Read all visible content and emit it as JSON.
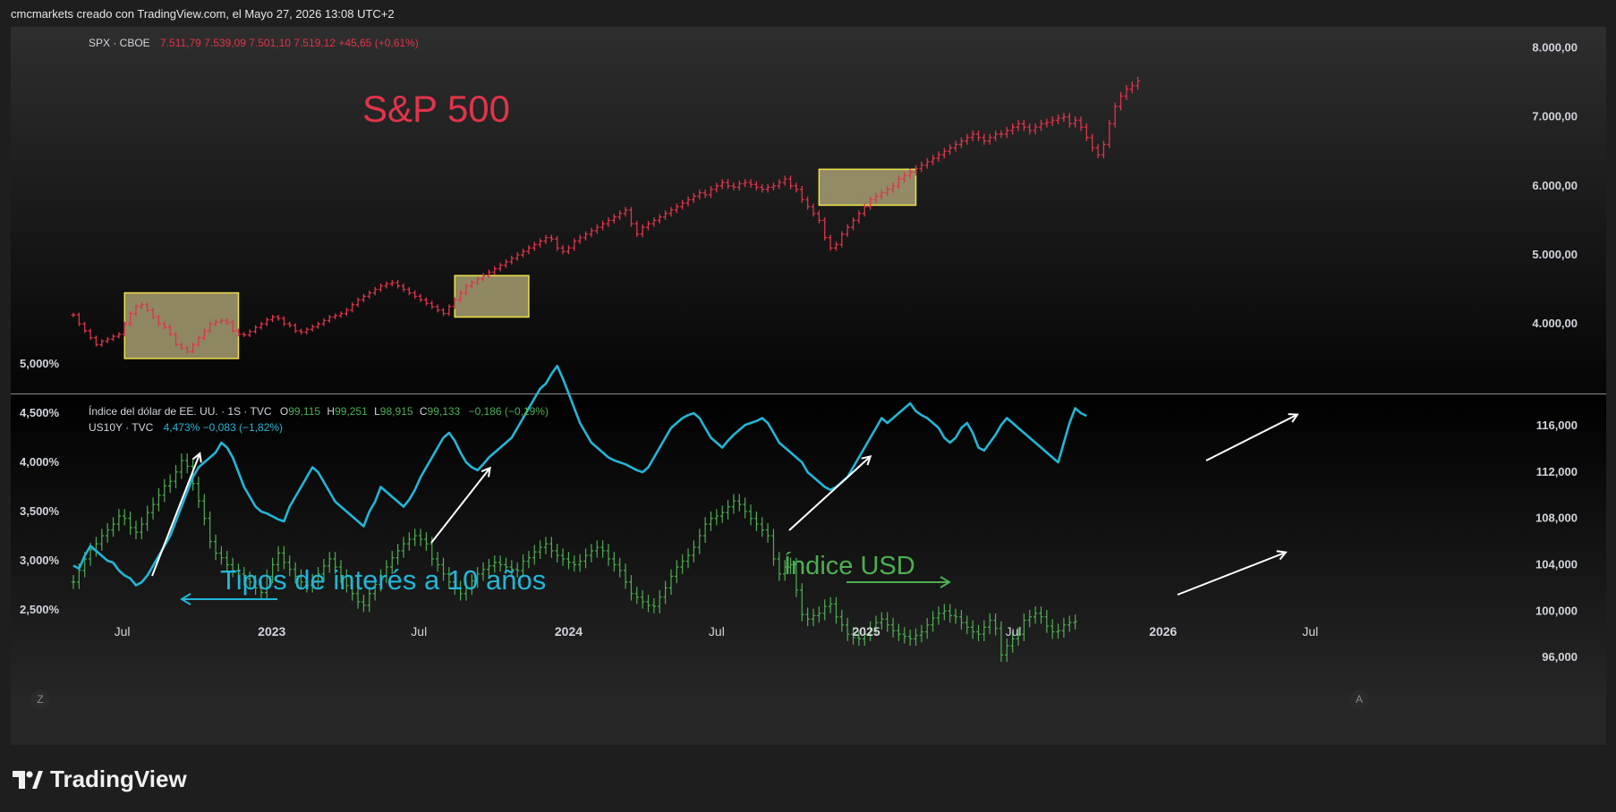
{
  "header": {
    "credit": "cmcmarkets creado con TradingView.com, el Mayo 27, 2026 13:08 UTC+2"
  },
  "branding": {
    "logo_text": "TradingView",
    "logo_icon": "tradingview-logo-icon"
  },
  "colors": {
    "spx": "#e0344a",
    "dxy": "#4caf50",
    "us10y": "#22b6d6",
    "highlight_fill": "#b3ab7a",
    "highlight_border": "#f0e14a",
    "panel_top_bg": "#2b2b2b",
    "panel_bottom_bg": "#000000"
  },
  "legend": {
    "spx_symbol": "SPX · CBOE",
    "spx_values": "7.511,79  7.539,09  7.501,10  7.519,12  +45,65 (+0,61%)",
    "dxy_symbol": "Índice del dólar de EE. UU. · 1S · TVC",
    "dxy_o_label": "O",
    "dxy_o": "99,115",
    "dxy_h_label": "H",
    "dxy_h": "99,251",
    "dxy_l_label": "L",
    "dxy_l": "98,915",
    "dxy_c_label": "C",
    "dxy_c": "99,133",
    "dxy_change": "−0,186 (−0,19%)",
    "us10y_symbol": "US10Y · TVC",
    "us10y_values": "4,473%  −0,083 (−1,82%)"
  },
  "annotations": {
    "spx_title": "S&P 500",
    "rates_label": "Tipos de interés a 10 años",
    "usd_label": "Índice USD"
  },
  "axis_buttons": {
    "left": "Z",
    "right": "A"
  },
  "chart_data": [
    {
      "type": "bar",
      "name": "SPX · CBOE",
      "title": "S&P 500",
      "x_start": "2022-05-02",
      "x_step": "1 week",
      "close": [
        4130,
        4000,
        3900,
        3800,
        3700,
        3750,
        3780,
        3820,
        3850,
        4000,
        4150,
        4250,
        4280,
        4200,
        4100,
        4000,
        3950,
        3850,
        3700,
        3650,
        3600,
        3700,
        3800,
        3900,
        4000,
        4030,
        4050,
        4020,
        3900,
        3850,
        3840,
        3890,
        3950,
        4000,
        4060,
        4100,
        4080,
        4000,
        3980,
        3900,
        3880,
        3920,
        3960,
        4000,
        4050,
        4100,
        4120,
        4150,
        4200,
        4280,
        4350,
        4400,
        4450,
        4500,
        4550,
        4580,
        4600,
        4550,
        4500,
        4450,
        4400,
        4350,
        4300,
        4250,
        4200,
        4150,
        4250,
        4350,
        4450,
        4550,
        4600,
        4650,
        4700,
        4750,
        4800,
        4850,
        4900,
        4950,
        5000,
        5050,
        5100,
        5150,
        5200,
        5250,
        5230,
        5100,
        5050,
        5100,
        5200,
        5250,
        5300,
        5350,
        5400,
        5450,
        5500,
        5550,
        5600,
        5650,
        5450,
        5300,
        5400,
        5450,
        5500,
        5550,
        5600,
        5650,
        5700,
        5750,
        5800,
        5850,
        5900,
        5870,
        5950,
        6000,
        6050,
        6000,
        5980,
        6030,
        6050,
        6020,
        5980,
        5950,
        5980,
        6000,
        6050,
        6100,
        6000,
        5950,
        5800,
        5700,
        5600,
        5500,
        5250,
        5100,
        5150,
        5300,
        5400,
        5500,
        5600,
        5700,
        5800,
        5850,
        5900,
        5950,
        6000,
        6100,
        6150,
        6200,
        6250,
        6300,
        6350,
        6400,
        6450,
        6500,
        6550,
        6600,
        6650,
        6700,
        6750,
        6700,
        6650,
        6700,
        6750,
        6750,
        6800,
        6850,
        6900,
        6850,
        6800,
        6850,
        6900,
        6920,
        6950,
        6980,
        7000,
        6900,
        6950,
        6850,
        6700,
        6550,
        6450,
        6600,
        6900,
        7150,
        7300,
        7400,
        7450,
        7519
      ],
      "ylim": [
        3200,
        8200
      ],
      "y_ticks": [
        "8.000,00",
        "7.000,00",
        "6.000,00",
        "5.000,00",
        "4.000,00"
      ],
      "y_tick_values": [
        8000,
        7000,
        6000,
        5000,
        4000
      ],
      "highlight_boxes": [
        {
          "x_from": "2022-07-04",
          "x_to": "2022-11-21",
          "y_from": 3500,
          "y_to": 4450
        },
        {
          "x_from": "2023-08-14",
          "x_to": "2023-11-13",
          "y_from": 4100,
          "y_to": 4700
        },
        {
          "x_from": "2024-11-04",
          "x_to": "2025-03-03",
          "y_from": 5720,
          "y_to": 6240
        }
      ]
    },
    {
      "type": "bar",
      "name": "Índice del dólar de EE. UU. · 1S · TVC",
      "label": "Índice USD",
      "close": [
        102.5,
        103.5,
        104.5,
        105.3,
        105.8,
        106.5,
        107.0,
        107.5,
        108.2,
        108.0,
        107.2,
        106.8,
        107.5,
        108.5,
        109.2,
        110.0,
        110.8,
        111.2,
        112.0,
        113.0,
        112.5,
        111.0,
        109.5,
        108.0,
        106.0,
        105.0,
        104.6,
        104.0,
        103.5,
        103.2,
        102.8,
        102.5,
        102.0,
        101.6,
        103.0,
        104.0,
        105.0,
        104.2,
        103.6,
        103.0,
        102.5,
        102.2,
        102.6,
        103.2,
        103.9,
        104.5,
        103.8,
        103.0,
        102.2,
        101.5,
        100.8,
        100.5,
        101.5,
        102.3,
        103.0,
        103.8,
        104.6,
        105.2,
        105.8,
        106.2,
        106.5,
        106.2,
        105.8,
        104.5,
        104.0,
        103.2,
        102.5,
        102.0,
        101.5,
        102.0,
        102.6,
        103.2,
        103.6,
        103.9,
        104.2,
        104.0,
        103.8,
        103.6,
        103.5,
        104.3,
        104.6,
        105.1,
        105.5,
        105.8,
        105.2,
        104.8,
        104.5,
        104.2,
        104.0,
        104.3,
        104.8,
        105.2,
        105.5,
        105.2,
        104.5,
        104.0,
        103.5,
        102.5,
        101.5,
        101.2,
        100.8,
        100.5,
        100.4,
        101.2,
        102.0,
        103.0,
        103.8,
        104.3,
        104.8,
        105.5,
        106.5,
        107.5,
        108.0,
        108.2,
        108.5,
        109.0,
        109.5,
        109.2,
        108.6,
        108.0,
        107.5,
        107.0,
        106.5,
        104.5,
        103.2,
        103.8,
        104.0,
        101.8,
        99.7,
        99.3,
        99.6,
        99.8,
        100.4,
        100.6,
        99.5,
        98.8,
        98.0,
        97.7,
        97.6,
        98.0,
        98.5,
        99.0,
        99.3,
        98.8,
        98.3,
        98.0,
        97.8,
        97.6,
        97.9,
        98.2,
        98.8,
        99.4,
        99.8,
        100.0,
        99.6,
        99.5,
        99.0,
        98.6,
        98.2,
        98.0,
        98.6,
        99.2,
        98.5,
        96.2,
        97.0,
        97.6,
        98.0,
        99.2,
        99.5,
        99.8,
        99.5,
        98.7,
        98.2,
        98.3,
        98.8,
        99.0,
        99.1
      ],
      "y_ticks": [
        "116,000",
        "112,000",
        "108,000",
        "104,000",
        "100,000",
        "96,000"
      ],
      "y_tick_values": [
        116,
        112,
        108,
        104,
        100,
        96
      ],
      "ylim": [
        94,
        118
      ]
    },
    {
      "type": "line",
      "name": "US10Y · TVC",
      "label": "Tipos de interés a 10 años",
      "values": [
        2.95,
        2.92,
        3.05,
        3.15,
        3.1,
        3.05,
        3.0,
        2.98,
        2.9,
        2.85,
        2.82,
        2.75,
        2.78,
        2.85,
        2.95,
        3.05,
        3.15,
        3.25,
        3.4,
        3.55,
        3.7,
        3.85,
        3.95,
        4.0,
        4.05,
        4.1,
        4.2,
        4.15,
        4.05,
        3.9,
        3.75,
        3.65,
        3.55,
        3.5,
        3.48,
        3.45,
        3.42,
        3.4,
        3.55,
        3.65,
        3.75,
        3.85,
        3.95,
        3.9,
        3.8,
        3.7,
        3.6,
        3.55,
        3.5,
        3.45,
        3.4,
        3.35,
        3.5,
        3.6,
        3.75,
        3.7,
        3.65,
        3.6,
        3.55,
        3.62,
        3.72,
        3.85,
        3.95,
        4.05,
        4.15,
        4.25,
        4.3,
        4.22,
        4.1,
        4.0,
        3.95,
        3.92,
        3.98,
        4.05,
        4.1,
        4.15,
        4.2,
        4.25,
        4.35,
        4.45,
        4.55,
        4.65,
        4.75,
        4.8,
        4.9,
        4.98,
        4.85,
        4.7,
        4.55,
        4.4,
        4.3,
        4.2,
        4.15,
        4.1,
        4.05,
        4.02,
        4.0,
        3.98,
        3.95,
        3.92,
        3.9,
        3.95,
        4.05,
        4.15,
        4.25,
        4.35,
        4.4,
        4.45,
        4.48,
        4.5,
        4.45,
        4.35,
        4.25,
        4.2,
        4.15,
        4.22,
        4.28,
        4.33,
        4.38,
        4.4,
        4.42,
        4.45,
        4.4,
        4.3,
        4.2,
        4.15,
        4.1,
        4.05,
        4.0,
        3.9,
        3.85,
        3.8,
        3.75,
        3.72,
        3.75,
        3.8,
        3.85,
        3.95,
        4.05,
        4.15,
        4.25,
        4.35,
        4.45,
        4.4,
        4.45,
        4.5,
        4.55,
        4.6,
        4.52,
        4.48,
        4.45,
        4.4,
        4.35,
        4.25,
        4.2,
        4.25,
        4.35,
        4.4,
        4.3,
        4.15,
        4.12,
        4.2,
        4.28,
        4.38,
        4.45,
        4.4,
        4.35,
        4.3,
        4.25,
        4.2,
        4.15,
        4.1,
        4.05,
        4.0,
        4.2,
        4.4,
        4.55,
        4.5,
        4.473
      ],
      "ylim": [
        2.4,
        5.15
      ],
      "y_ticks": [
        "5,000%",
        "4,500%",
        "4,000%",
        "3,500%",
        "3,000%",
        "2,500%"
      ],
      "y_tick_values": [
        5.0,
        4.5,
        4.0,
        3.5,
        3.0,
        2.5
      ]
    }
  ],
  "x_axis": {
    "ticks": [
      {
        "label": "Jul",
        "date": "2022-07-01"
      },
      {
        "label": "2023",
        "date": "2023-01-01"
      },
      {
        "label": "Jul",
        "date": "2023-07-01"
      },
      {
        "label": "2024",
        "date": "2024-01-01"
      },
      {
        "label": "Jul",
        "date": "2024-07-01"
      },
      {
        "label": "2025",
        "date": "2025-01-01"
      },
      {
        "label": "Jul",
        "date": "2025-07-01"
      },
      {
        "label": "2026",
        "date": "2026-01-01"
      },
      {
        "label": "Jul",
        "date": "2026-07-01"
      }
    ],
    "bold_labels": [
      "2023",
      "2024",
      "2025",
      "2026"
    ]
  }
}
